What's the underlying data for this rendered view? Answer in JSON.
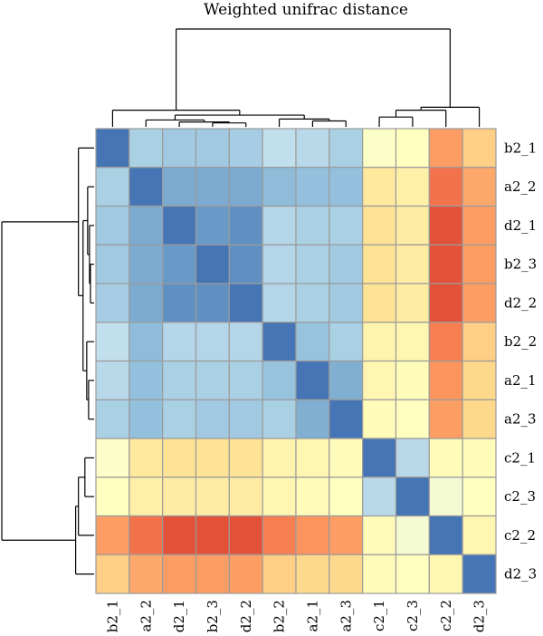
{
  "chart_data": {
    "type": "heatmap",
    "title": "Weighted unifrac distance",
    "rows": [
      "b2_1",
      "a2_2",
      "d2_1",
      "b2_3",
      "d2_2",
      "b2_2",
      "a2_1",
      "a2_3",
      "c2_1",
      "c2_3",
      "c2_2",
      "d2_3"
    ],
    "columns": [
      "b2_1",
      "a2_2",
      "d2_1",
      "b2_3",
      "d2_2",
      "b2_2",
      "a2_1",
      "a2_3",
      "c2_1",
      "c2_3",
      "c2_2",
      "d2_3"
    ],
    "values": [
      [
        0.0,
        0.22,
        0.2,
        0.2,
        0.21,
        0.27,
        0.25,
        0.22,
        0.48,
        0.5,
        0.8,
        0.7
      ],
      [
        0.22,
        0.0,
        0.12,
        0.12,
        0.12,
        0.16,
        0.17,
        0.17,
        0.62,
        0.58,
        0.88,
        0.78
      ],
      [
        0.2,
        0.12,
        0.0,
        0.08,
        0.06,
        0.24,
        0.22,
        0.22,
        0.65,
        0.6,
        0.94,
        0.8
      ],
      [
        0.2,
        0.12,
        0.08,
        0.0,
        0.06,
        0.24,
        0.22,
        0.2,
        0.65,
        0.6,
        0.94,
        0.8
      ],
      [
        0.21,
        0.12,
        0.06,
        0.06,
        0.0,
        0.24,
        0.22,
        0.2,
        0.65,
        0.6,
        0.94,
        0.8
      ],
      [
        0.27,
        0.16,
        0.24,
        0.24,
        0.24,
        0.0,
        0.18,
        0.22,
        0.56,
        0.55,
        0.86,
        0.7
      ],
      [
        0.25,
        0.17,
        0.22,
        0.22,
        0.22,
        0.18,
        0.0,
        0.13,
        0.55,
        0.52,
        0.82,
        0.68
      ],
      [
        0.22,
        0.17,
        0.22,
        0.2,
        0.2,
        0.22,
        0.13,
        0.0,
        0.52,
        0.5,
        0.8,
        0.68
      ],
      [
        0.48,
        0.62,
        0.65,
        0.65,
        0.65,
        0.56,
        0.55,
        0.52,
        0.0,
        0.25,
        0.52,
        0.52
      ],
      [
        0.5,
        0.58,
        0.6,
        0.6,
        0.6,
        0.55,
        0.52,
        0.5,
        0.25,
        0.0,
        0.44,
        0.5
      ],
      [
        0.8,
        0.88,
        0.94,
        0.94,
        0.94,
        0.86,
        0.82,
        0.8,
        0.52,
        0.44,
        0.0,
        0.55
      ],
      [
        0.7,
        0.78,
        0.8,
        0.8,
        0.8,
        0.7,
        0.68,
        0.68,
        0.52,
        0.5,
        0.55,
        0.0
      ]
    ],
    "value_range": [
      0,
      1
    ],
    "color_scale": [
      "#4575b4",
      "#91bfdb",
      "#e0f3f8",
      "#ffffbf",
      "#fee090",
      "#fc8d59",
      "#d73027"
    ],
    "cell_border_color": "#9b9b9b",
    "legend": "none"
  }
}
